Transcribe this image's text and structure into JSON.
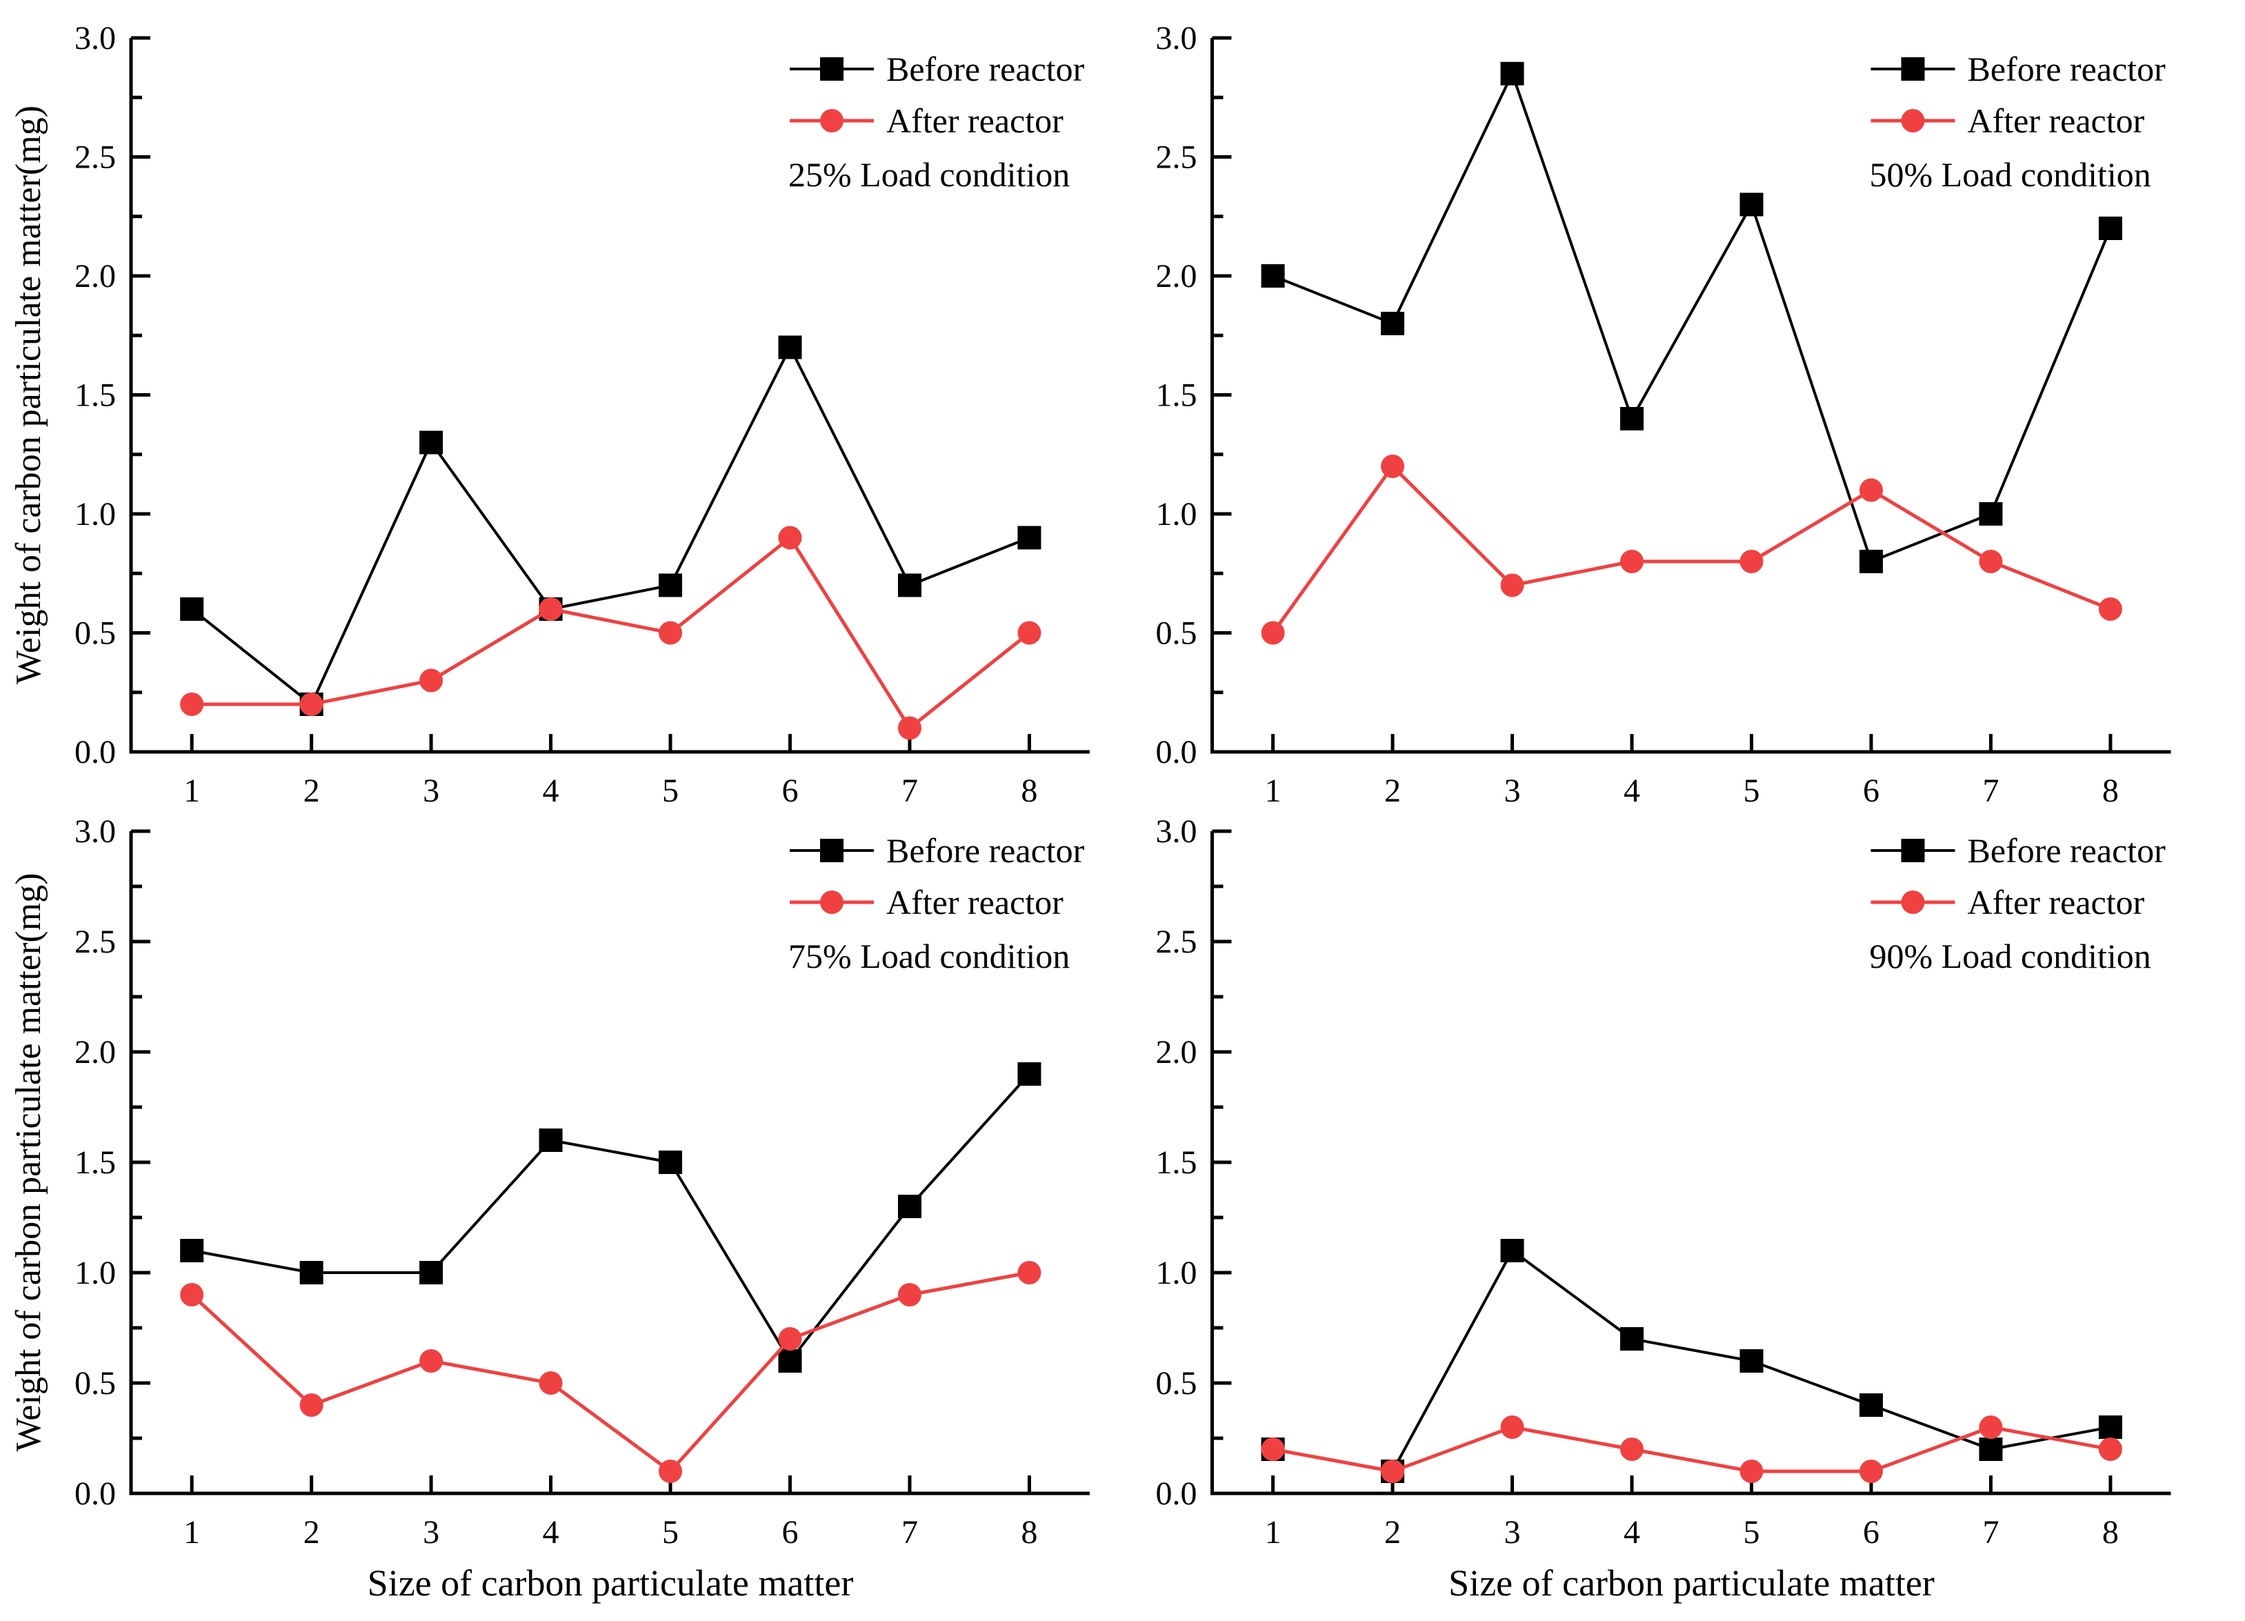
{
  "figure": {
    "background": "#ffffff",
    "description_labels": {
      "y_axis_title": "Weight of carbon particulate matter(mg)",
      "x_axis_title": "Size of carbon particulate matter"
    }
  },
  "colors": {
    "before_series": "#000000",
    "after_series": "#ef4142",
    "axis": "#000000"
  },
  "legend": {
    "before_label": "Before reactor",
    "after_label": "After reactor",
    "position": "top-right"
  },
  "axis": {
    "y_ticks": [
      "0.0",
      "0.5",
      "1.0",
      "1.5",
      "2.0",
      "2.5",
      "3.0"
    ],
    "x_ticks": [
      "1",
      "2",
      "3",
      "4",
      "5",
      "6",
      "7",
      "8"
    ],
    "ylim": [
      0,
      3
    ],
    "y_minor_step": 0.25,
    "grid": false
  },
  "chart_data": [
    {
      "type": "line",
      "title": "25% Load condition",
      "x": [
        1,
        2,
        3,
        4,
        5,
        6,
        7,
        8
      ],
      "series": [
        {
          "name": "Before reactor",
          "marker": "filled-square",
          "color": "#000000",
          "values": [
            0.6,
            0.2,
            1.3,
            0.6,
            0.7,
            1.7,
            0.7,
            0.9
          ]
        },
        {
          "name": "After reactor",
          "marker": "filled-circle",
          "color": "#ef4142",
          "values": [
            0.2,
            0.2,
            0.3,
            0.6,
            0.5,
            0.9,
            0.1,
            0.5
          ]
        }
      ],
      "xlabel": "",
      "ylabel": "Weight of carbon particulate matter(mg)",
      "ylim": [
        0,
        3
      ],
      "legend_position": "top-right",
      "grid": false,
      "show_ylabel": true,
      "show_xlabel": false
    },
    {
      "type": "line",
      "title": "50% Load condition",
      "x": [
        1,
        2,
        3,
        4,
        5,
        6,
        7,
        8
      ],
      "series": [
        {
          "name": "Before reactor",
          "marker": "filled-square",
          "color": "#000000",
          "values": [
            2.0,
            1.8,
            2.85,
            1.4,
            2.3,
            0.8,
            1.0,
            2.2
          ]
        },
        {
          "name": "After reactor",
          "marker": "filled-circle",
          "color": "#ef4142",
          "values": [
            0.5,
            1.2,
            0.7,
            0.8,
            0.8,
            1.1,
            0.8,
            0.6
          ]
        }
      ],
      "xlabel": "",
      "ylabel": "",
      "ylim": [
        0,
        3
      ],
      "legend_position": "top-right",
      "grid": false,
      "show_ylabel": false,
      "show_xlabel": false
    },
    {
      "type": "line",
      "title": "75% Load condition",
      "x": [
        1,
        2,
        3,
        4,
        5,
        6,
        7,
        8
      ],
      "series": [
        {
          "name": "Before reactor",
          "marker": "filled-square",
          "color": "#000000",
          "values": [
            1.1,
            1.0,
            1.0,
            1.6,
            1.5,
            0.6,
            1.3,
            1.9
          ]
        },
        {
          "name": "After reactor",
          "marker": "filled-circle",
          "color": "#ef4142",
          "values": [
            0.9,
            0.4,
            0.6,
            0.5,
            0.1,
            0.7,
            0.9,
            1.0
          ]
        }
      ],
      "xlabel": "Size of carbon particulate matter",
      "ylabel": "Weight of carbon particulate matter(mg)",
      "ylim": [
        0,
        3
      ],
      "legend_position": "top-right",
      "grid": false,
      "show_ylabel": true,
      "show_xlabel": true
    },
    {
      "type": "line",
      "title": "90% Load condition",
      "x": [
        1,
        2,
        3,
        4,
        5,
        6,
        7,
        8
      ],
      "series": [
        {
          "name": "Before reactor",
          "marker": "filled-square",
          "color": "#000000",
          "values": [
            0.2,
            0.1,
            1.1,
            0.7,
            0.6,
            0.4,
            0.2,
            0.3
          ]
        },
        {
          "name": "After reactor",
          "marker": "filled-circle",
          "color": "#ef4142",
          "values": [
            0.2,
            0.1,
            0.3,
            0.2,
            0.1,
            0.1,
            0.3,
            0.2
          ]
        }
      ],
      "xlabel": "Size of carbon particulate matter",
      "ylabel": "",
      "ylim": [
        0,
        3
      ],
      "legend_position": "top-right",
      "grid": false,
      "show_ylabel": false,
      "show_xlabel": true
    }
  ]
}
